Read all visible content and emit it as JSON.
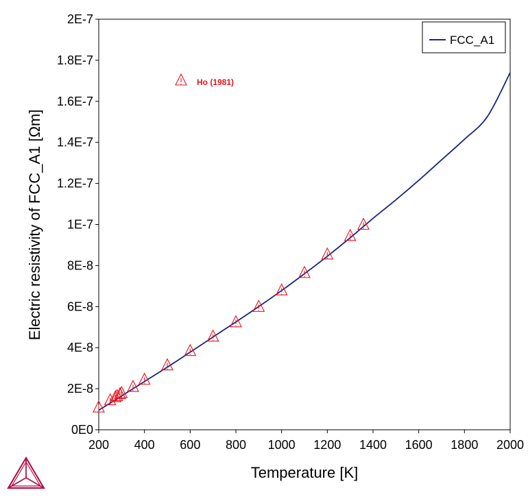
{
  "chart_data": {
    "type": "line",
    "xlabel": "Temperature [K]",
    "ylabel": "Electric resistivity of FCC_A1 [Ωm]",
    "xlim": [
      200,
      2000
    ],
    "ylim": [
      0,
      2e-07
    ],
    "x_ticks": [
      200,
      400,
      600,
      800,
      1000,
      1200,
      1400,
      1600,
      1800,
      2000
    ],
    "x_tick_labels": [
      "200",
      "400",
      "600",
      "800",
      "1000",
      "1200",
      "1400",
      "1600",
      "1800",
      "2000"
    ],
    "y_ticks": [
      0,
      2e-08,
      4e-08,
      6e-08,
      8e-08,
      1e-07,
      1.2e-07,
      1.4e-07,
      1.6e-07,
      1.8e-07,
      2e-07
    ],
    "y_tick_labels": [
      "0E0",
      "2E-8",
      "4E-8",
      "6E-8",
      "8E-8",
      "1E-7",
      "1.2E-7",
      "1.4E-7",
      "1.6E-7",
      "1.8E-7",
      "2E-7"
    ],
    "grid": false,
    "legend_position": "top-right",
    "series": [
      {
        "name": "FCC_A1",
        "color": "#1a237e",
        "x": [
          200,
          300,
          400,
          500,
          600,
          700,
          800,
          900,
          1000,
          1100,
          1200,
          1300,
          1400,
          1500,
          1600,
          1700,
          1800,
          1900,
          2000
        ],
        "y": [
          9.5e-09,
          1.65e-08,
          2.35e-08,
          3.05e-08,
          3.78e-08,
          4.52e-08,
          5.25e-08,
          6e-08,
          6.78e-08,
          7.6e-08,
          8.45e-08,
          9.35e-08,
          1.03e-07,
          1.12e-07,
          1.215e-07,
          1.315e-07,
          1.415e-07,
          1.525e-07,
          1.74e-07
        ]
      }
    ],
    "experimental": {
      "name": "Ho (1981)",
      "color": "#e8121c",
      "marker": "warning-triangle",
      "x": [
        200,
        250,
        273,
        280,
        293,
        300,
        350,
        400,
        500,
        600,
        700,
        800,
        900,
        1000,
        1100,
        1200,
        1300,
        1358
      ],
      "y": [
        1.1e-08,
        1.45e-08,
        1.6e-08,
        1.65e-08,
        1.75e-08,
        1.8e-08,
        2.1e-08,
        2.45e-08,
        3.15e-08,
        3.85e-08,
        4.55e-08,
        5.25e-08,
        6e-08,
        6.8e-08,
        7.65e-08,
        8.55e-08,
        9.45e-08,
        1e-07
      ]
    }
  },
  "legend": {
    "line_label": "FCC_A1",
    "annotation_label": "Ho (1981)"
  },
  "colors": {
    "line": "#1a237e",
    "marker": "#e8121c",
    "logo": "#b0144a"
  },
  "icons": {
    "logo": "thermo-calc-logo-icon",
    "marker": "warning-triangle-icon"
  }
}
